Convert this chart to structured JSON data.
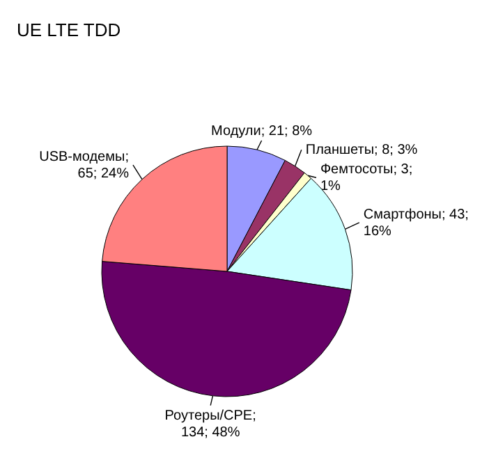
{
  "chart_data": {
    "type": "pie",
    "title": "UE LTE TDD",
    "categories": [
      "Модули",
      "Планшеты",
      "Фемтосоты",
      "Смартфоны",
      "Роутеры/CPE",
      "USB-модемы"
    ],
    "values": [
      21,
      8,
      3,
      43,
      134,
      65
    ],
    "colors": [
      "#9999ff",
      "#993366",
      "#ffffcc",
      "#ccffff",
      "#660066",
      "#ff8080"
    ],
    "value_labels": [
      "; 21; 8%",
      "; 8; 3%",
      "; 3; 1%",
      "; 43; 16%",
      "; 134; 48%",
      "; 65; 24%"
    ],
    "legend": false
  }
}
